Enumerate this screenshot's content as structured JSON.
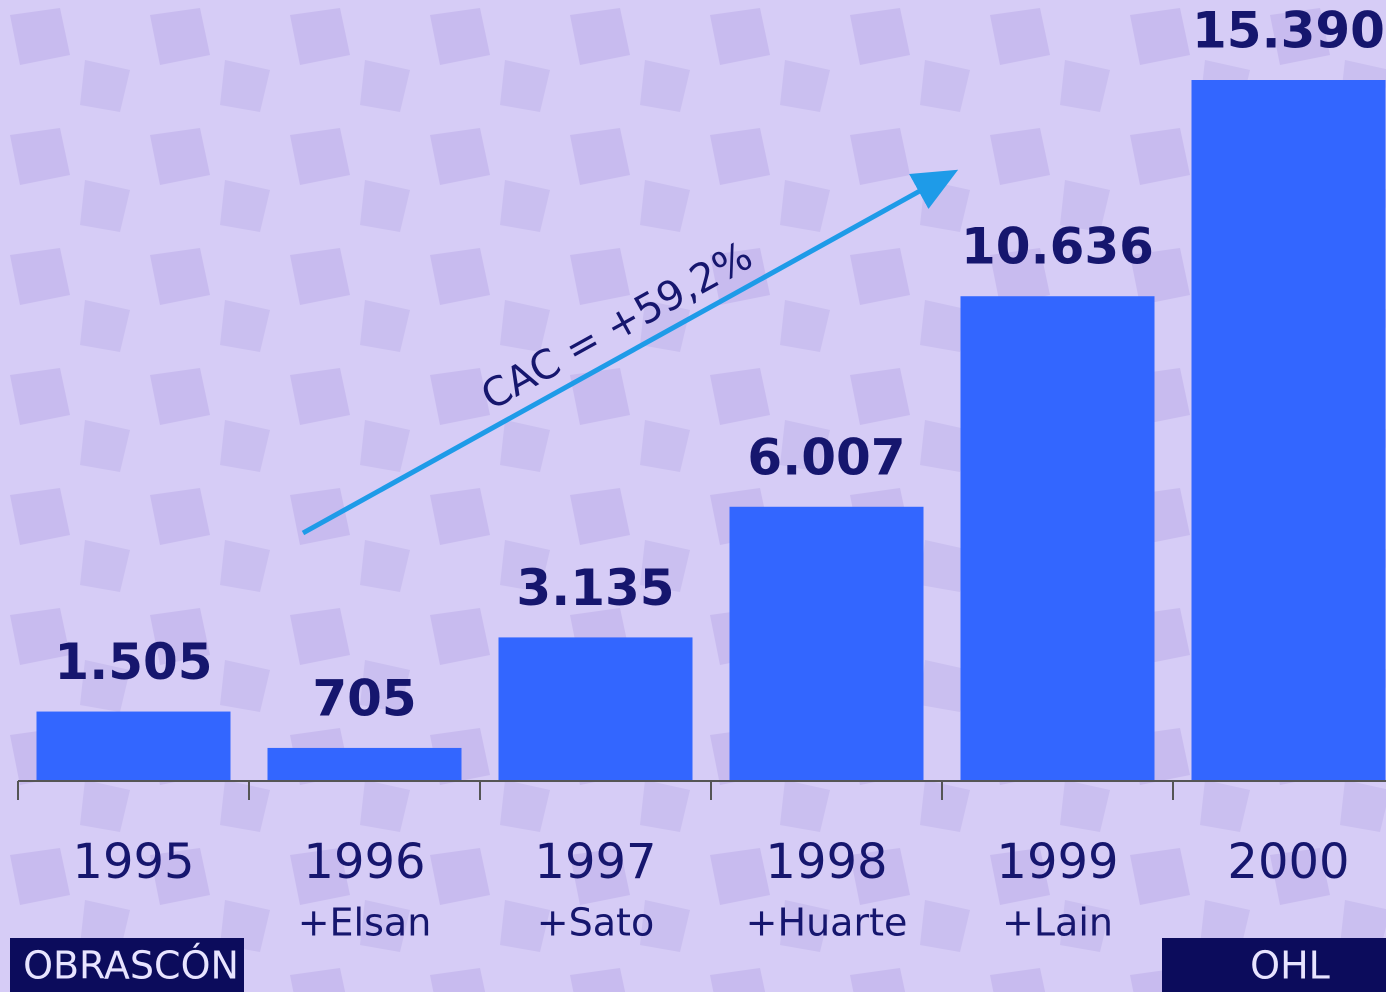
{
  "chart_data": {
    "type": "bar",
    "categories": [
      "1995",
      "1996",
      "1997",
      "1998",
      "1999",
      "2000"
    ],
    "sublabels": [
      null,
      "+Elsan",
      "+Sato",
      "+Huarte",
      "+Lain",
      null
    ],
    "values": [
      1505,
      705,
      3135,
      6007,
      10636,
      15390
    ],
    "value_labels": [
      "1.505",
      "705",
      "3.135",
      "6.007",
      "10.636",
      "15.390"
    ],
    "color": "#3366ff",
    "annotation": "CAC = +59,2%",
    "notes": [
      "OBRASCÓN",
      "OHL"
    ]
  }
}
